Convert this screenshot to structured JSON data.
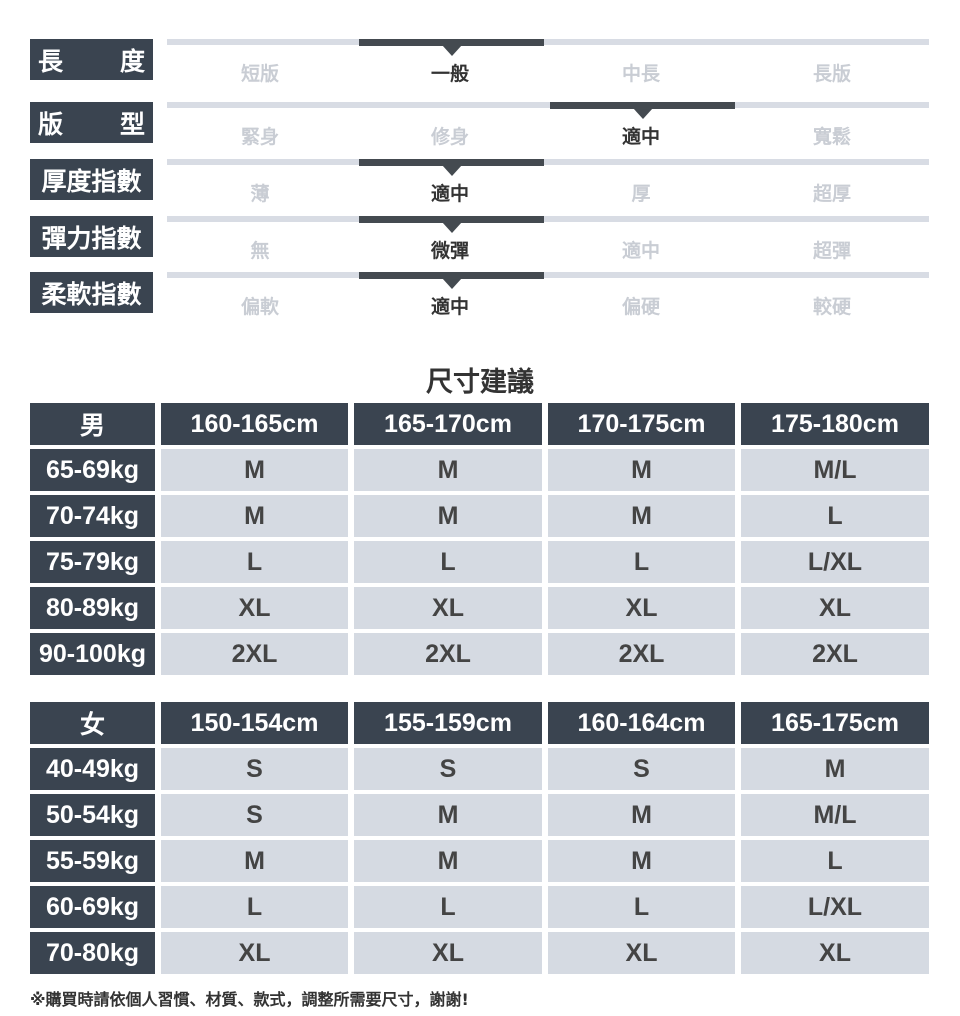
{
  "attributes": [
    {
      "label": "長度",
      "options": [
        "短版",
        "一般",
        "中長",
        "長版"
      ],
      "selected": 1
    },
    {
      "label": "版型",
      "options": [
        "緊身",
        "修身",
        "適中",
        "寬鬆"
      ],
      "selected": 2
    },
    {
      "label": "厚度指數",
      "options": [
        "薄",
        "適中",
        "厚",
        "超厚"
      ],
      "selected": 1
    },
    {
      "label": "彈力指數",
      "options": [
        "無",
        "微彈",
        "適中",
        "超彈"
      ],
      "selected": 1
    },
    {
      "label": "柔軟指數",
      "options": [
        "偏軟",
        "適中",
        "偏硬",
        "較硬"
      ],
      "selected": 1
    }
  ],
  "section_title": "尺寸建議",
  "tables": [
    {
      "gender": "男",
      "heights": [
        "160-165cm",
        "165-170cm",
        "170-175cm",
        "175-180cm"
      ],
      "rows": [
        {
          "weight": "65-69kg",
          "sizes": [
            "M",
            "M",
            "M",
            "M/L"
          ]
        },
        {
          "weight": "70-74kg",
          "sizes": [
            "M",
            "M",
            "M",
            "L"
          ]
        },
        {
          "weight": "75-79kg",
          "sizes": [
            "L",
            "L",
            "L",
            "L/XL"
          ]
        },
        {
          "weight": "80-89kg",
          "sizes": [
            "XL",
            "XL",
            "XL",
            "XL"
          ]
        },
        {
          "weight": "90-100kg",
          "sizes": [
            "2XL",
            "2XL",
            "2XL",
            "2XL"
          ]
        }
      ]
    },
    {
      "gender": "女",
      "heights": [
        "150-154cm",
        "155-159cm",
        "160-164cm",
        "165-175cm"
      ],
      "rows": [
        {
          "weight": "40-49kg",
          "sizes": [
            "S",
            "S",
            "S",
            "M"
          ]
        },
        {
          "weight": "50-54kg",
          "sizes": [
            "S",
            "M",
            "M",
            "M/L"
          ]
        },
        {
          "weight": "55-59kg",
          "sizes": [
            "M",
            "M",
            "M",
            "L"
          ]
        },
        {
          "weight": "60-69kg",
          "sizes": [
            "L",
            "L",
            "L",
            "L/XL"
          ]
        },
        {
          "weight": "70-80kg",
          "sizes": [
            "XL",
            "XL",
            "XL",
            "XL"
          ]
        }
      ]
    }
  ],
  "footnote": "※購買時請依個人習慣、材質、款式，調整所需要尺寸，謝謝!",
  "colors": {
    "header_bg": "#3a4450",
    "cell_bg": "#d5dae2",
    "track": "#d8dce4",
    "active": "#444a50",
    "inactive_text": "#c9cdd4"
  }
}
